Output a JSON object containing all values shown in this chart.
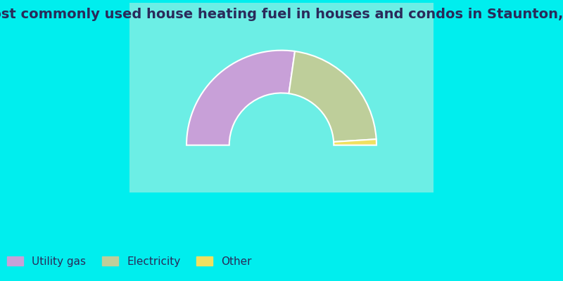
{
  "title": "Most commonly used house heating fuel in houses and condos in Staunton, IN",
  "segments": [
    {
      "label": "Utility gas",
      "value": 54.5,
      "color": "#c8a0d8"
    },
    {
      "label": "Electricity",
      "value": 43.5,
      "color": "#bece9a"
    },
    {
      "label": "Other",
      "value": 2.0,
      "color": "#f0e060"
    }
  ],
  "background_color": "#00eeee",
  "chart_bg_start": "#e8f5e8",
  "chart_bg_end": "#ffffff",
  "title_color": "#2a2a5a",
  "title_fontsize": 14,
  "legend_fontsize": 11
}
